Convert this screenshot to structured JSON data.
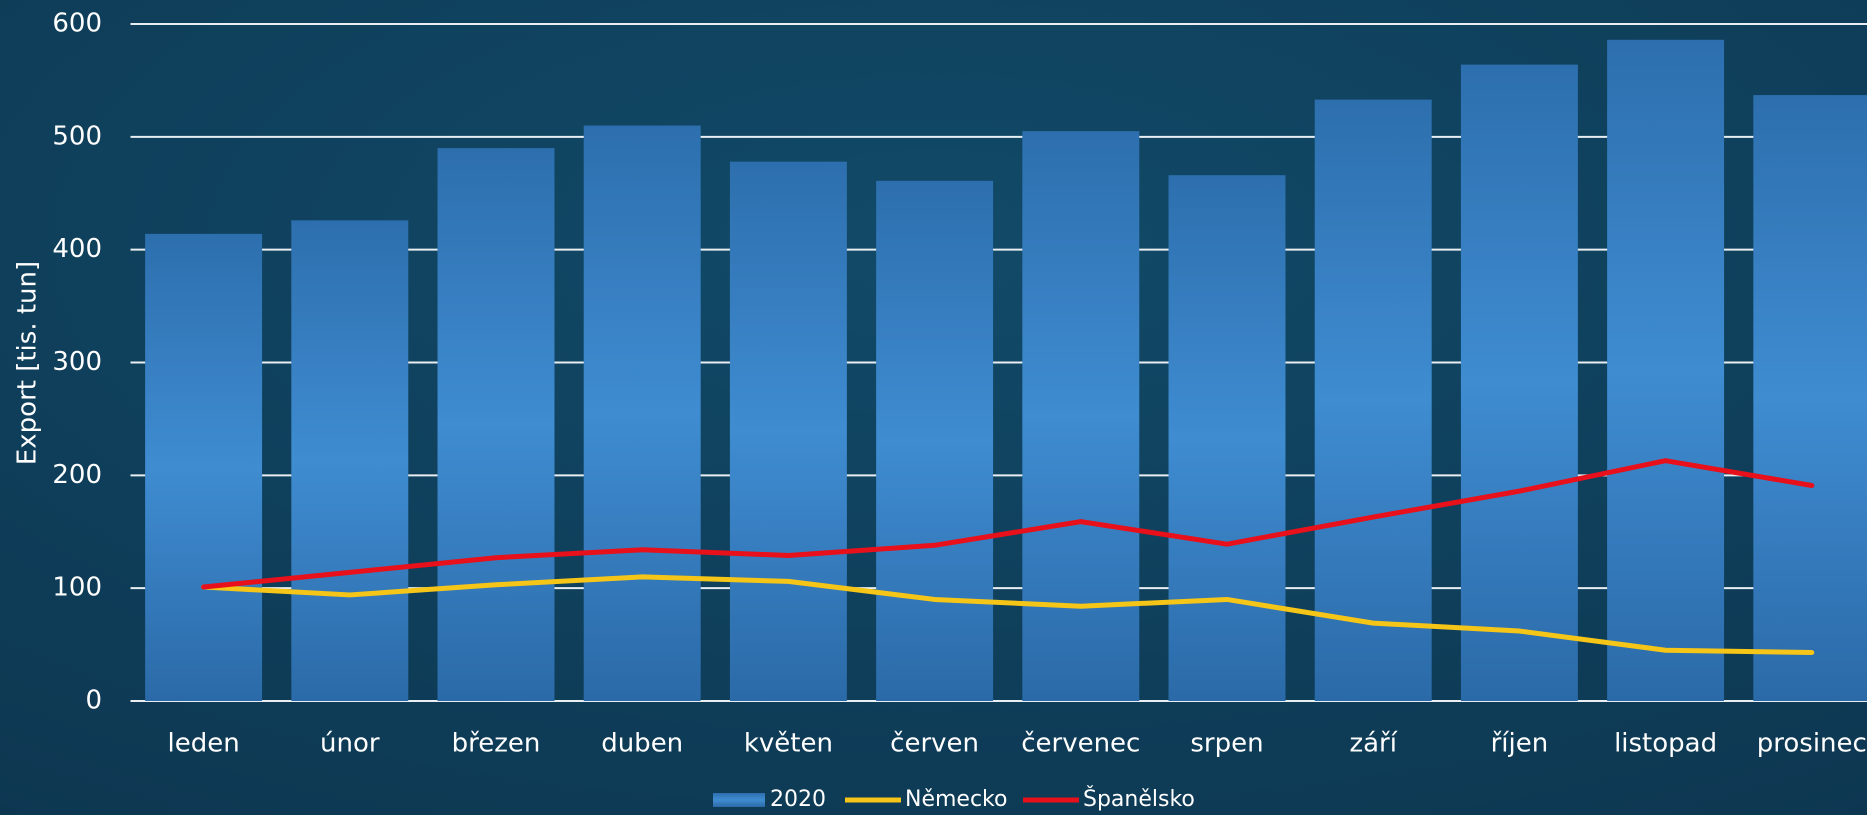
{
  "chart_data": {
    "type": "bar_line",
    "y_axis_label": "Export [tis. tun]",
    "categories": [
      "leden",
      "únor",
      "březen",
      "duben",
      "květen",
      "červen",
      "červenec",
      "srpen",
      "září",
      "říjen",
      "listopad",
      "prosinec"
    ],
    "series": [
      {
        "name": "2020",
        "type": "bar",
        "color": "#2f78bb",
        "values": [
          414,
          426,
          490,
          510,
          478,
          461,
          505,
          466,
          533,
          564,
          586,
          537
        ]
      },
      {
        "name": "Německo",
        "type": "line",
        "color": "#f5c518",
        "values": [
          101,
          94,
          103,
          110,
          106,
          90,
          84,
          90,
          69,
          62,
          45,
          43
        ]
      },
      {
        "name": "Španělsko",
        "type": "line",
        "color": "#e8101a",
        "values": [
          101,
          114,
          127,
          134,
          129,
          138,
          159,
          139,
          163,
          186,
          213,
          191
        ]
      }
    ],
    "ylim": [
      0,
      600
    ],
    "yticks": [
      0,
      100,
      200,
      300,
      400,
      500,
      600
    ],
    "grid": true,
    "legend": "bottom"
  }
}
